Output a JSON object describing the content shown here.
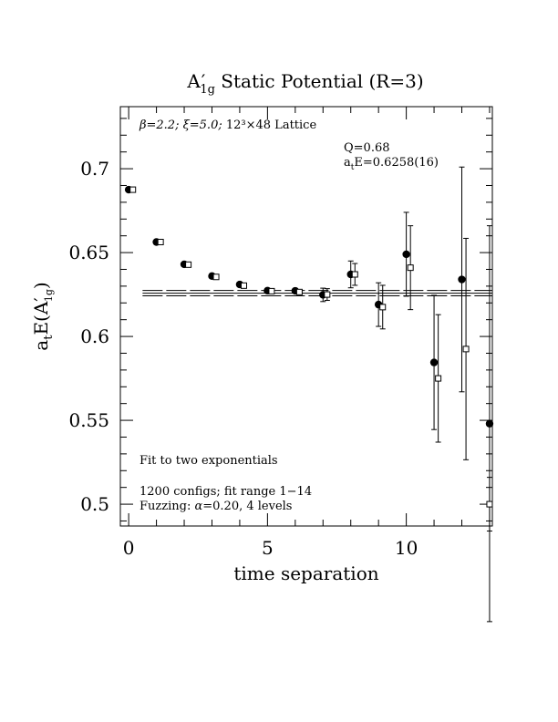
{
  "chart_data": {
    "type": "scatter",
    "title_main": "A",
    "title_prime": "′",
    "title_sub": "1g",
    "title_rest": " Static Potential (R=3)",
    "xlabel": "time separation",
    "ylabel_main": "a",
    "ylabel_sub": "t",
    "ylabel_mid": "E(A",
    "ylabel_prime": "′",
    "ylabel_sub2": "1g",
    "ylabel_end": ")",
    "xlim": [
      -0.3,
      13.1
    ],
    "ylim": [
      0.487,
      0.737
    ],
    "x_ticks": [
      0,
      5,
      10
    ],
    "x_tick_labels": [
      "0",
      "5",
      "10"
    ],
    "y_ticks": [
      0.5,
      0.55,
      0.6,
      0.65,
      0.7
    ],
    "y_tick_labels": [
      "0.5",
      "0.55",
      "0.6",
      "0.65",
      "0.7"
    ],
    "lattice_beta": "β=2.2; ",
    "lattice_xi": "ξ=5.0; ",
    "lattice_size": "12³×48 Lattice",
    "q_text": "Q=0.68",
    "fit_a": "a",
    "fit_t": "t",
    "fit_rest": "E=0.6258(16)",
    "note_fit": "Fit to two exponentials",
    "note_configs": "1200 configs; fit range 1−14",
    "note_fuzz_pre": "Fuzzing: ",
    "note_fuzz_alpha": "α",
    "note_fuzz_post": "=0.20, 4 levels",
    "fit_value": 0.6258,
    "fit_error": 0.0016,
    "fit_x_range": [
      0.5,
      13.1
    ],
    "series": [
      {
        "marker": "filled-circle",
        "points": [
          {
            "x": 0,
            "y": 0.6875,
            "err": 0
          },
          {
            "x": 1,
            "y": 0.6563,
            "err": 0
          },
          {
            "x": 2,
            "y": 0.643,
            "err": 0
          },
          {
            "x": 3,
            "y": 0.636,
            "err": 0
          },
          {
            "x": 4,
            "y": 0.631,
            "err": 0
          },
          {
            "x": 5,
            "y": 0.6273,
            "err": 0
          },
          {
            "x": 6,
            "y": 0.6272,
            "err": 0
          },
          {
            "x": 7,
            "y": 0.6248,
            "err": 0.004
          },
          {
            "x": 8,
            "y": 0.637,
            "err": 0.008
          },
          {
            "x": 9,
            "y": 0.619,
            "err": 0.013
          },
          {
            "x": 10,
            "y": 0.649,
            "err": 0.025
          },
          {
            "x": 11,
            "y": 0.5845,
            "err": 0.04
          },
          {
            "x": 12,
            "y": 0.634,
            "err": 0.067
          },
          {
            "x": 13,
            "y": 0.548,
            "err": 0.118
          }
        ]
      },
      {
        "marker": "open-square",
        "points": [
          {
            "x": 0.15,
            "y": 0.6875,
            "err": 0
          },
          {
            "x": 1.15,
            "y": 0.6563,
            "err": 0
          },
          {
            "x": 2.15,
            "y": 0.6428,
            "err": 0
          },
          {
            "x": 3.15,
            "y": 0.6355,
            "err": 0
          },
          {
            "x": 4.15,
            "y": 0.6303,
            "err": 0
          },
          {
            "x": 5.15,
            "y": 0.627,
            "err": 0
          },
          {
            "x": 6.15,
            "y": 0.6265,
            "err": 0
          },
          {
            "x": 7.15,
            "y": 0.625,
            "err": 0.0035
          },
          {
            "x": 8.15,
            "y": 0.637,
            "err": 0.0065
          },
          {
            "x": 9.15,
            "y": 0.6175,
            "err": 0.013
          },
          {
            "x": 10.15,
            "y": 0.641,
            "err": 0.025
          },
          {
            "x": 11.15,
            "y": 0.575,
            "err": 0.038
          },
          {
            "x": 12.15,
            "y": 0.5925,
            "err": 0.066
          },
          {
            "x": 13.0,
            "y": 0.5,
            "err": 0.016
          }
        ]
      }
    ]
  }
}
